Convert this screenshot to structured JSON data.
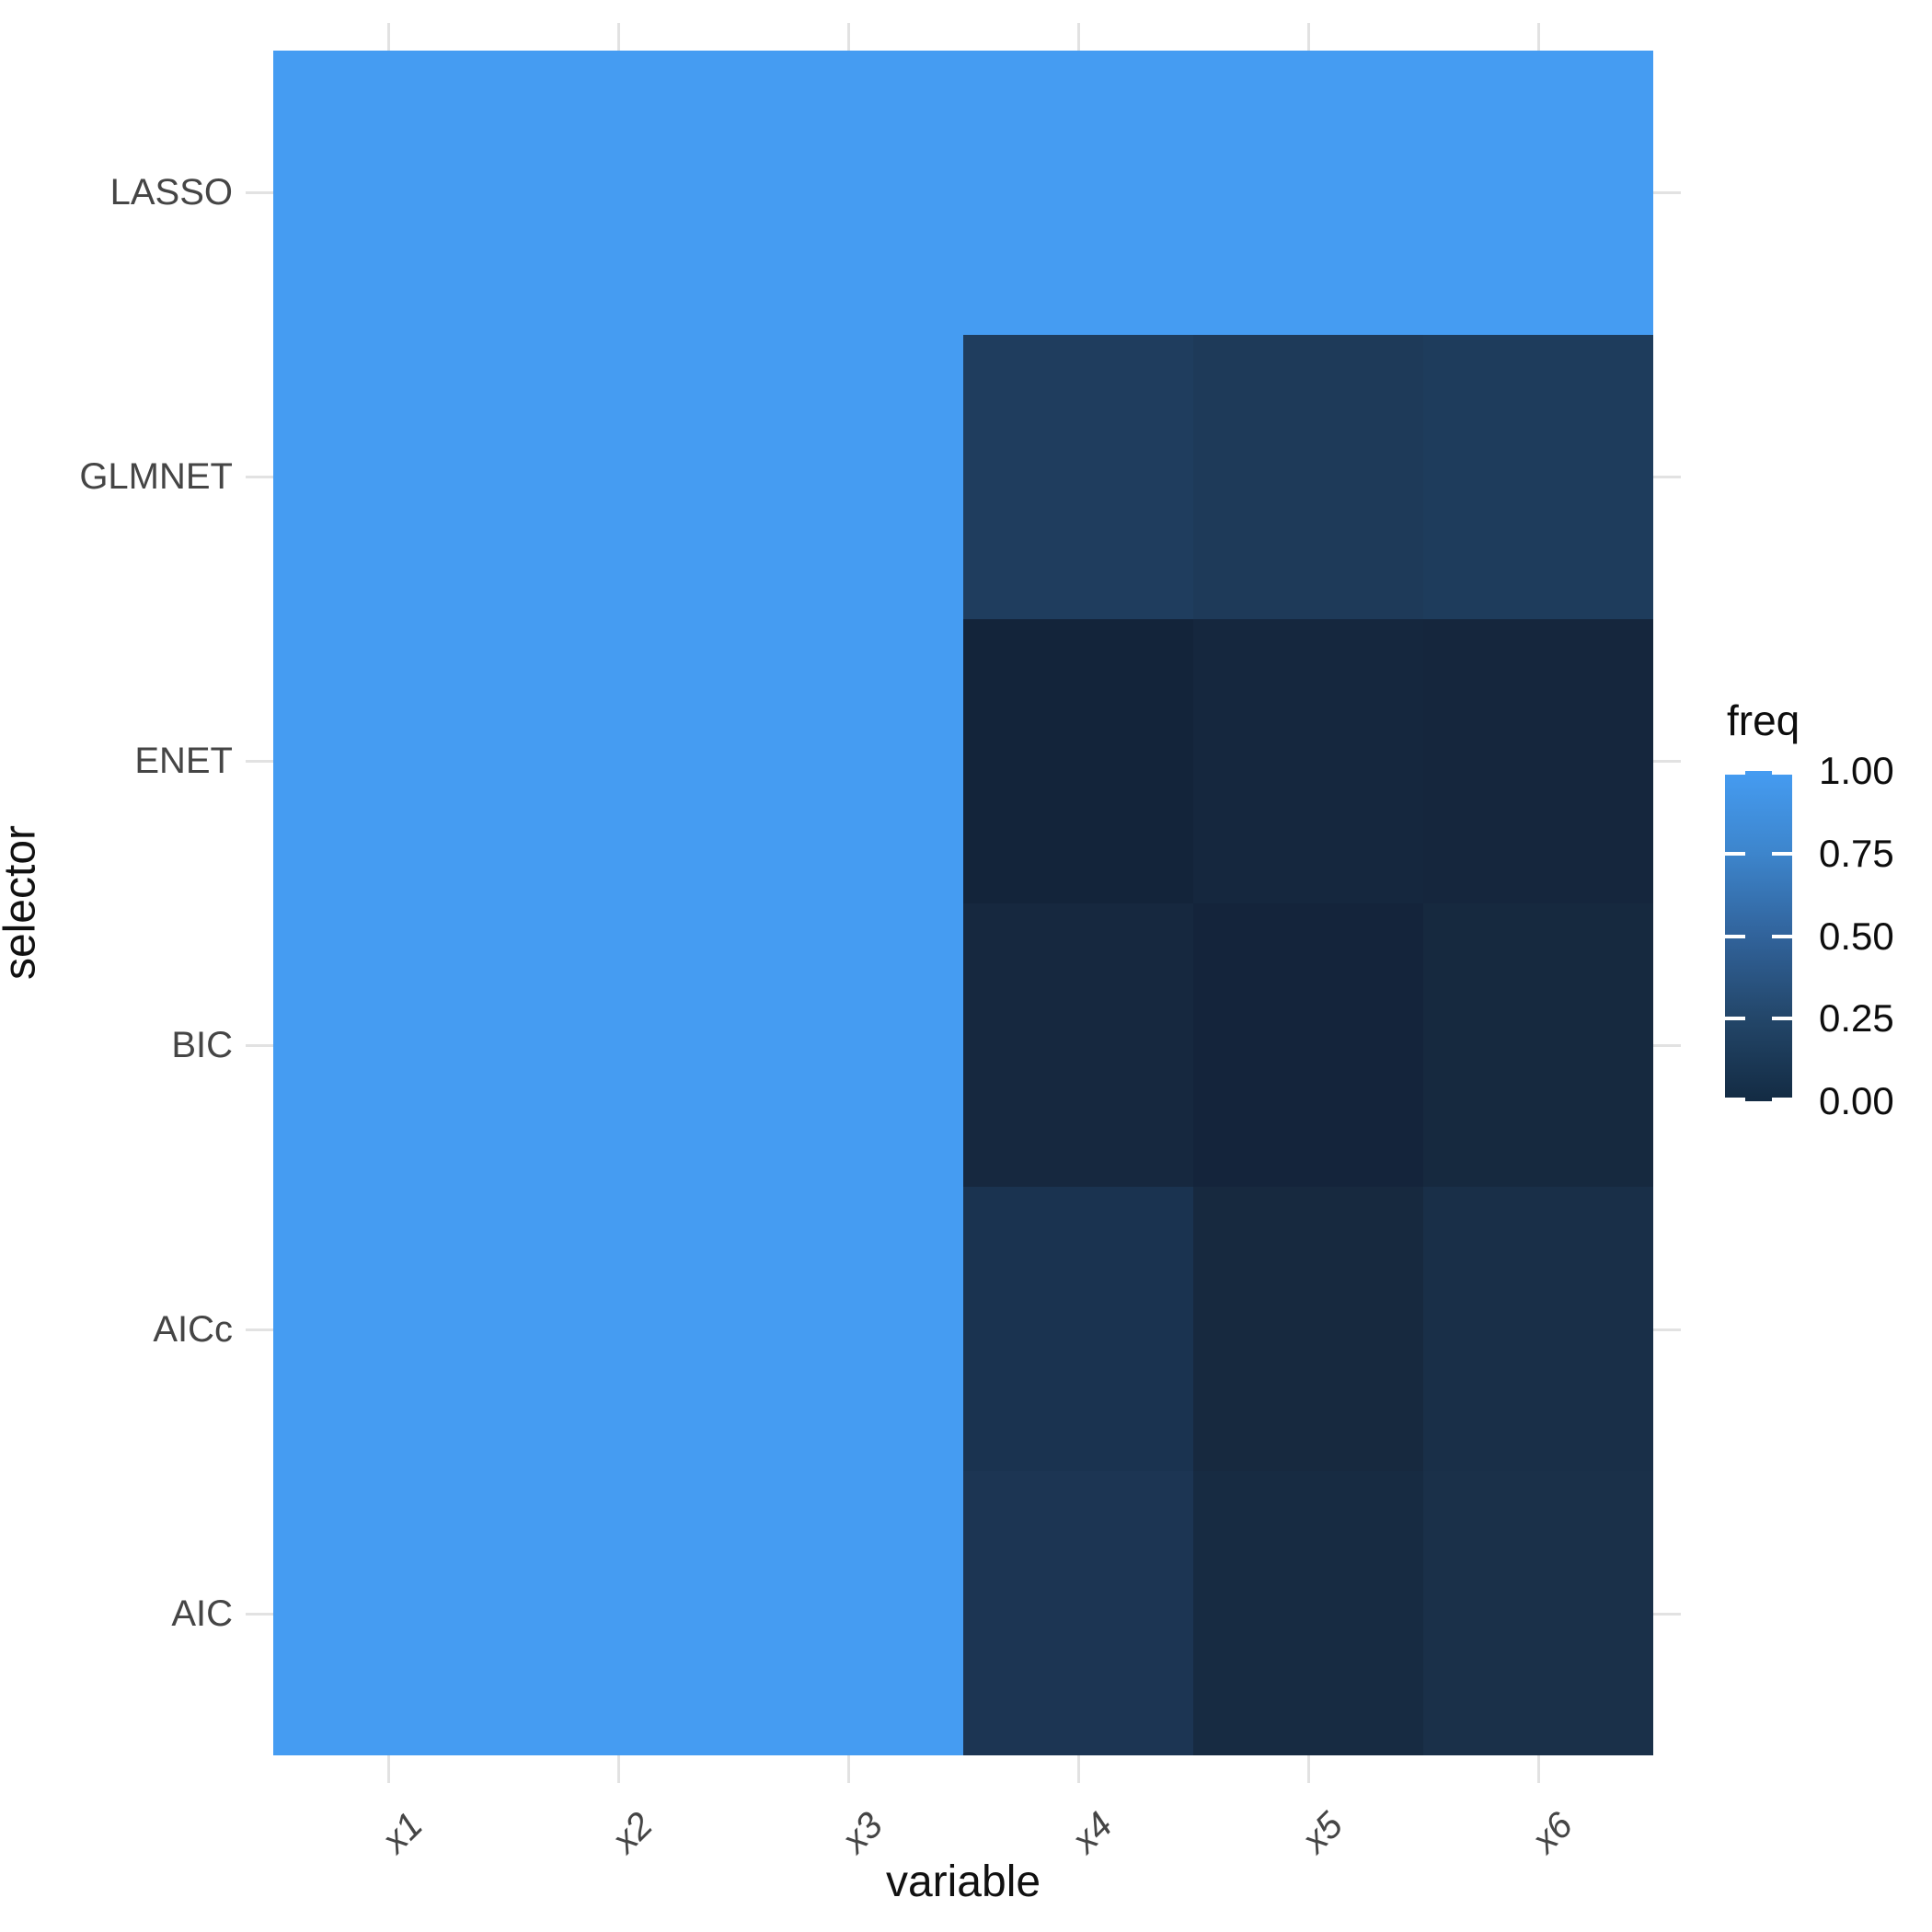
{
  "chart_data": {
    "type": "heatmap",
    "xlabel": "variable",
    "ylabel": "selector",
    "x_categories": [
      "x1",
      "x2",
      "x3",
      "x4",
      "x5",
      "x6"
    ],
    "y_categories_top_to_bottom": [
      "LASSO",
      "GLMNET",
      "ENET",
      "BIC",
      "AICc",
      "AIC"
    ],
    "freq_values_estimated_from_color": true,
    "rows": [
      {
        "selector": "LASSO",
        "freq": [
          1.0,
          1.0,
          1.0,
          1.0,
          1.0,
          1.0
        ],
        "colors": [
          "#459CF2",
          "#459CF2",
          "#459CF2",
          "#459CF2",
          "#459CF2",
          "#459CF2"
        ]
      },
      {
        "selector": "GLMNET",
        "freq": [
          1.0,
          1.0,
          1.0,
          0.2,
          0.18,
          0.19
        ],
        "colors": [
          "#459CF2",
          "#459CF2",
          "#459CF2",
          "#1F3D5E",
          "#1E3A59",
          "#1E3C5C"
        ]
      },
      {
        "selector": "ENET",
        "freq": [
          1.0,
          1.0,
          1.0,
          0.0,
          0.02,
          0.02
        ],
        "colors": [
          "#459CF2",
          "#459CF2",
          "#459CF2",
          "#13243A",
          "#15273E",
          "#15263D"
        ]
      },
      {
        "selector": "BIC",
        "freq": [
          1.0,
          1.0,
          1.0,
          0.03,
          0.01,
          0.03
        ],
        "colors": [
          "#459CF2",
          "#459CF2",
          "#459CF2",
          "#16283F",
          "#14243B",
          "#16293F"
        ]
      },
      {
        "selector": "AICc",
        "freq": [
          1.0,
          1.0,
          1.0,
          0.1,
          0.04,
          0.07
        ],
        "colors": [
          "#459CF2",
          "#459CF2",
          "#459CF2",
          "#1A3350",
          "#17293F",
          "#192F48"
        ]
      },
      {
        "selector": "AIC",
        "freq": [
          1.0,
          1.0,
          1.0,
          0.12,
          0.05,
          0.08
        ],
        "colors": [
          "#459CF2",
          "#459CF2",
          "#459CF2",
          "#1C3553",
          "#172B42",
          "#1A3049"
        ]
      }
    ],
    "legend": {
      "title": "freq",
      "tick_labels": [
        "1.00",
        "0.75",
        "0.50",
        "0.25",
        "0.00"
      ],
      "high_color": "#459CF2",
      "low_color": "#132B43",
      "gradient_stops_bottom_to_top": [
        "#132B43",
        "#234669",
        "#31639B",
        "#3D85CC",
        "#459CF2"
      ],
      "position": "right"
    },
    "layout_hints": {
      "grid": "off",
      "ticks_on_all_sides": true,
      "tick_color": "#E2E2E2",
      "background": "#FFFFFF",
      "x_label_rotation_deg": 45
    }
  }
}
